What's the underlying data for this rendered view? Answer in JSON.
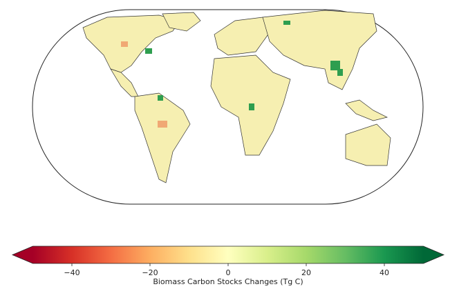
{
  "colorbar": {
    "label": "Biomass Carbon Stocks Changes (Tg C)",
    "lim": [
      -50,
      50
    ],
    "ticks": [
      -40,
      -20,
      0,
      20,
      40
    ],
    "colormap": "RdYlGn",
    "extend": "both"
  }
}
